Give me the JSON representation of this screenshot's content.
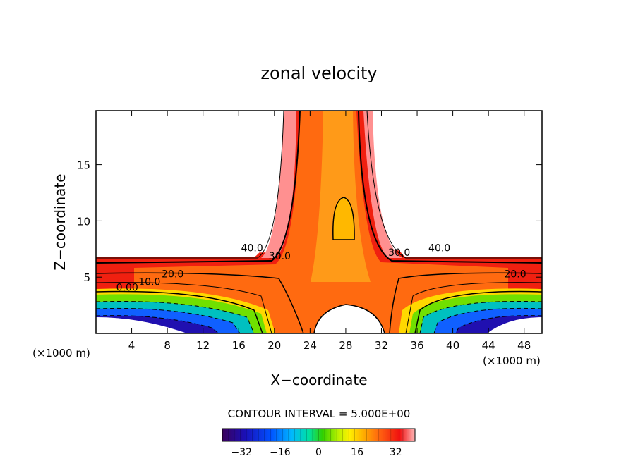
{
  "chart_data": {
    "type": "heatmap",
    "title": "zonal velocity",
    "xlabel": "X−coordinate",
    "ylabel": "Z−coordinate",
    "x_unit_left": "(×1000 m)",
    "x_unit_right": "(×1000 m)",
    "xlim": [
      0,
      50
    ],
    "ylim": [
      0,
      19.8
    ],
    "x_ticks": [
      {
        "value": 4,
        "label": "4"
      },
      {
        "value": 8,
        "label": "8"
      },
      {
        "value": 12,
        "label": "12"
      },
      {
        "value": 16,
        "label": "16"
      },
      {
        "value": 20,
        "label": "20"
      },
      {
        "value": 24,
        "label": "24"
      },
      {
        "value": 28,
        "label": "28"
      },
      {
        "value": 32,
        "label": "32"
      },
      {
        "value": 36,
        "label": "36"
      },
      {
        "value": 40,
        "label": "40"
      },
      {
        "value": 44,
        "label": "44"
      },
      {
        "value": 48,
        "label": "48"
      }
    ],
    "y_ticks": [
      {
        "value": 5,
        "label": "5"
      },
      {
        "value": 10,
        "label": "10"
      },
      {
        "value": 15,
        "label": "15"
      }
    ],
    "contour_interval_text": "CONTOUR INTERVAL = 5.000E+00",
    "contour_labels": [
      {
        "text": "0.00",
        "x": 3.5,
        "z": 4.1
      },
      {
        "text": "10.0",
        "x": 6.0,
        "z": 4.6
      },
      {
        "text": "20.0",
        "x": 8.6,
        "z": 5.3
      },
      {
        "text": "40.0",
        "x": 17.5,
        "z": 7.6
      },
      {
        "text": "30.0",
        "x": 20.6,
        "z": 6.9
      },
      {
        "text": "30.0",
        "x": 34.0,
        "z": 7.2
      },
      {
        "text": "40.0",
        "x": 38.5,
        "z": 7.6
      },
      {
        "text": "20.0",
        "x": 47.0,
        "z": 5.3
      }
    ],
    "colorbar": {
      "min": -40,
      "max": 40,
      "ticks": [
        {
          "value": -32,
          "label": "−32"
        },
        {
          "value": -16,
          "label": "−16"
        },
        {
          "value": 0,
          "label": "0"
        },
        {
          "value": 16,
          "label": "16"
        },
        {
          "value": 32,
          "label": "32"
        }
      ]
    },
    "colors": [
      "#3a005a",
      "#1a10b8",
      "#0050ff",
      "#00b8ff",
      "#00e0a0",
      "#30d000",
      "#b8f000",
      "#fff000",
      "#ffb000",
      "#ff6010",
      "#f01010",
      "#ffb8b8",
      "#ffffff"
    ]
  }
}
